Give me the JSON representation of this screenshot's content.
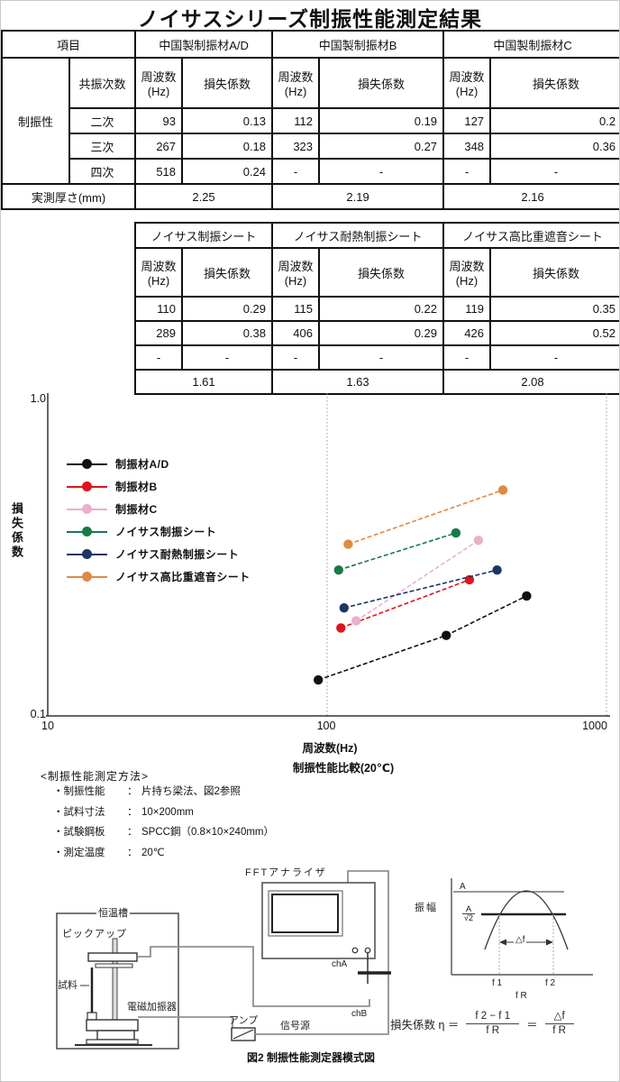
{
  "title": "ノイサスシリーズ制振性能測定結果",
  "table1": {
    "item_header": "項目",
    "material_headers": [
      "中国製制振材A/D",
      "中国製制振材B",
      "中国製制振材C"
    ],
    "row_group_label": "制振性",
    "mode_header": "共振次数",
    "freq_header": [
      "周波数",
      "(Hz)"
    ],
    "loss_header": "損失係数",
    "rows": [
      {
        "mode": "二次",
        "values": [
          "93",
          "0.13",
          "112",
          "0.19",
          "127",
          "0.2"
        ]
      },
      {
        "mode": "三次",
        "values": [
          "267",
          "0.18",
          "323",
          "0.27",
          "348",
          "0.36"
        ]
      },
      {
        "mode": "四次",
        "values": [
          "518",
          "0.24",
          "-",
          "-",
          "-",
          "-"
        ]
      }
    ],
    "thickness_label": "実測厚さ(mm)",
    "thickness_values": [
      "2.25",
      "2.19",
      "2.16"
    ]
  },
  "table2": {
    "headers": [
      "ノイサス制振シート",
      "ノイサス耐熱制振シート",
      "ノイサス高比重遮音シート"
    ],
    "freq_header": [
      "周波数",
      "(Hz)"
    ],
    "loss_header": "損失係数",
    "rows": [
      [
        "110",
        "0.29",
        "115",
        "0.22",
        "119",
        "0.35"
      ],
      [
        "289",
        "0.38",
        "406",
        "0.29",
        "426",
        "0.52"
      ],
      [
        "-",
        "-",
        "-",
        "-",
        "-",
        "-"
      ]
    ],
    "thickness_values": [
      "1.61",
      "1.63",
      "2.08"
    ]
  },
  "chart_data": {
    "type": "line",
    "title": "制振性能比較(20℃)",
    "xlabel": "周波数(Hz)",
    "ylabel": "損失係数",
    "xscale": "log",
    "yscale": "log",
    "xlim": [
      10,
      1000
    ],
    "ylim": [
      0.1,
      1.0
    ],
    "x_ticks": [
      "10",
      "100",
      "1000"
    ],
    "y_ticks": [
      "0.1",
      "1.0"
    ],
    "grid_x": [
      100,
      1000
    ],
    "legend_position": "upper-left",
    "series": [
      {
        "name": "制振材A/D",
        "color": "#111111",
        "points": [
          [
            93,
            0.13
          ],
          [
            267,
            0.18
          ],
          [
            518,
            0.24
          ]
        ]
      },
      {
        "name": "制振材B",
        "color": "#dd151d",
        "points": [
          [
            112,
            0.19
          ],
          [
            323,
            0.27
          ]
        ]
      },
      {
        "name": "制振材C",
        "color": "#ecaecd",
        "points": [
          [
            127,
            0.2
          ],
          [
            348,
            0.36
          ]
        ]
      },
      {
        "name": "ノイサス制振シート",
        "color": "#187a46",
        "points": [
          [
            110,
            0.29
          ],
          [
            289,
            0.38
          ]
        ]
      },
      {
        "name": "ノイサス耐熱制振シート",
        "color": "#1c3566",
        "points": [
          [
            115,
            0.22
          ],
          [
            406,
            0.29
          ]
        ]
      },
      {
        "name": "ノイサス高比重遮音シート",
        "color": "#dd8a45",
        "points": [
          [
            119,
            0.35
          ],
          [
            426,
            0.52
          ]
        ]
      }
    ]
  },
  "methods": {
    "heading": "<制振性能測定方法>",
    "items": [
      {
        "label": "・制振性能",
        "sep": "：",
        "value": "片持ち梁法、図2参照"
      },
      {
        "label": "・試料寸法",
        "sep": "：",
        "value": "10×200mm"
      },
      {
        "label": "・試験鋼板",
        "sep": "：",
        "value": "SPCC鋼（0.8×10×240mm）"
      },
      {
        "label": "・測定温度",
        "sep": "：",
        "value": "20℃"
      }
    ]
  },
  "diagram": {
    "fft_label": "FFTアナライザ",
    "chamber_label": "恒温槽",
    "pickup_label": "ピックアップ",
    "sample_label": "試料",
    "exciter_label": "電磁加振器",
    "amp_label": "アンプ",
    "signal_label": "信号源",
    "ch_a": "chA",
    "ch_b": "chB",
    "caption": "図2 制振性能測定器模式図",
    "curve": {
      "amplitude_label": "振幅",
      "peak_label": "A",
      "half_power_num": "A",
      "half_power_den": "√2",
      "delta_f_label": "△f",
      "f1_label": "f 1",
      "f2_label": "f 2",
      "fr_label": "f R"
    },
    "formula": {
      "lhs": "損失係数 η ＝",
      "num1": "f 2 − f 1",
      "den1": "f R",
      "eq": "＝",
      "num2": "△f",
      "den2": "f R"
    }
  }
}
